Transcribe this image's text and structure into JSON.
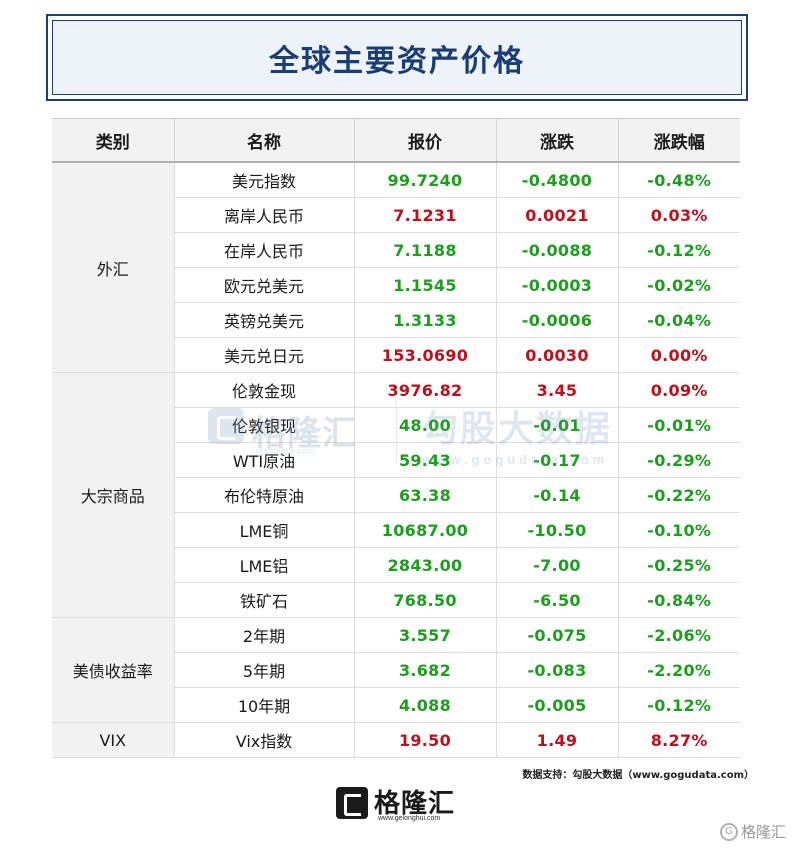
{
  "title": "全球主要资产价格",
  "headers": [
    "类别",
    "名称",
    "报价",
    "涨跌",
    "涨跌幅"
  ],
  "groups": [
    {
      "category": "外汇",
      "rows": [
        {
          "name": "美元指数",
          "price": "99.7240",
          "change": "-0.4800",
          "pct": "-0.48%",
          "dir": "down"
        },
        {
          "name": "离岸人民币",
          "price": "7.1231",
          "change": "0.0021",
          "pct": "0.03%",
          "dir": "up"
        },
        {
          "name": "在岸人民币",
          "price": "7.1188",
          "change": "-0.0088",
          "pct": "-0.12%",
          "dir": "down"
        },
        {
          "name": "欧元兑美元",
          "price": "1.1545",
          "change": "-0.0003",
          "pct": "-0.02%",
          "dir": "down"
        },
        {
          "name": "英镑兑美元",
          "price": "1.3133",
          "change": "-0.0006",
          "pct": "-0.04%",
          "dir": "down"
        },
        {
          "name": "美元兑日元",
          "price": "153.0690",
          "change": "0.0030",
          "pct": "0.00%",
          "dir": "up"
        }
      ]
    },
    {
      "category": "大宗商品",
      "rows": [
        {
          "name": "伦敦金现",
          "price": "3976.82",
          "change": "3.45",
          "pct": "0.09%",
          "dir": "up"
        },
        {
          "name": "伦敦银现",
          "price": "48.00",
          "change": "-0.01",
          "pct": "-0.01%",
          "dir": "down"
        },
        {
          "name": "WTI原油",
          "price": "59.43",
          "change": "-0.17",
          "pct": "-0.29%",
          "dir": "down"
        },
        {
          "name": "布伦特原油",
          "price": "63.38",
          "change": "-0.14",
          "pct": "-0.22%",
          "dir": "down"
        },
        {
          "name": "LME铜",
          "price": "10687.00",
          "change": "-10.50",
          "pct": "-0.10%",
          "dir": "down"
        },
        {
          "name": "LME铝",
          "price": "2843.00",
          "change": "-7.00",
          "pct": "-0.25%",
          "dir": "down"
        },
        {
          "name": "铁矿石",
          "price": "768.50",
          "change": "-6.50",
          "pct": "-0.84%",
          "dir": "down"
        }
      ]
    },
    {
      "category": "美债收益率",
      "rows": [
        {
          "name": "2年期",
          "price": "3.557",
          "change": "-0.075",
          "pct": "-2.06%",
          "dir": "down"
        },
        {
          "name": "5年期",
          "price": "3.682",
          "change": "-0.083",
          "pct": "-2.20%",
          "dir": "down"
        },
        {
          "name": "10年期",
          "price": "4.088",
          "change": "-0.005",
          "pct": "-0.12%",
          "dir": "down"
        }
      ]
    },
    {
      "category": "VIX",
      "rows": [
        {
          "name": "Vix指数",
          "price": "19.50",
          "change": "1.49",
          "pct": "8.27%",
          "dir": "up"
        }
      ]
    }
  ],
  "watermark": {
    "brand": "格隆汇",
    "brand_url": "gelonghui.com",
    "right": "勾股大数据",
    "right_url": "www.gogudata.com"
  },
  "source": "数据支持：勾股大数据（www.gogudata.com）",
  "footer_logo": {
    "brand": "格隆汇",
    "url": "www.gelonghui.com"
  },
  "corner_mark": "格隆汇",
  "colors": {
    "up": "#c0101b",
    "down": "#1e9e1e",
    "title": "#1a3e74",
    "header_bg": "#f2f2f2"
  }
}
